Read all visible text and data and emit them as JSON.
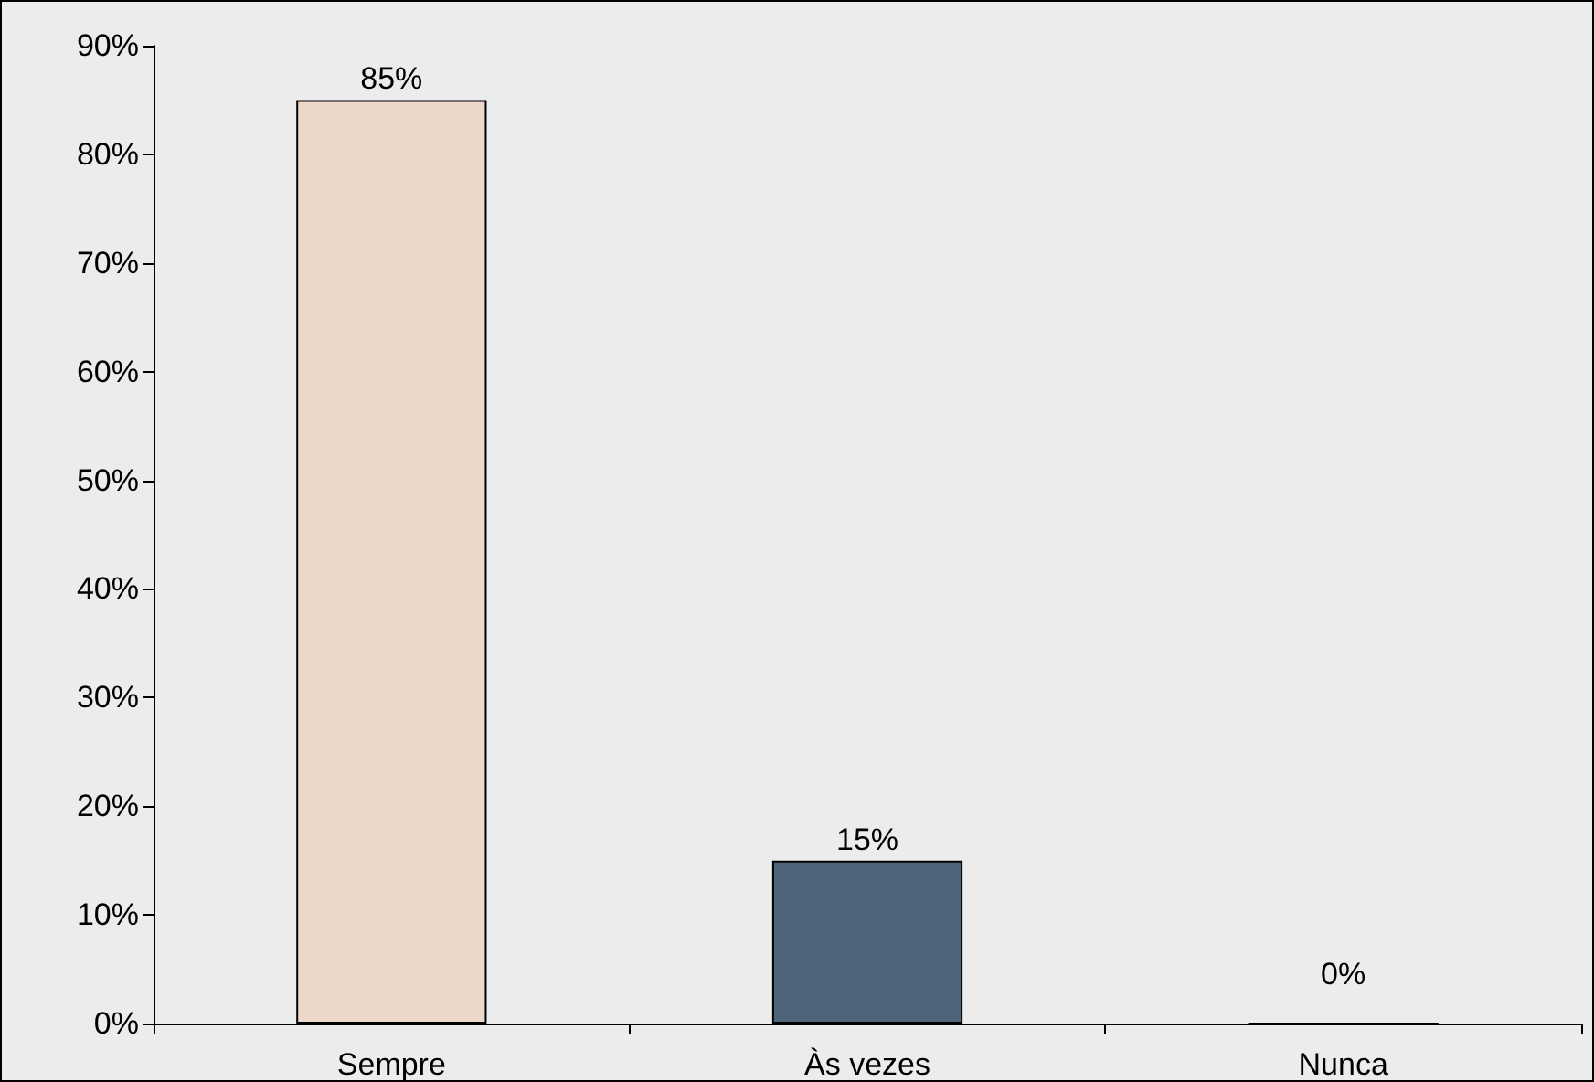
{
  "chart_data": {
    "type": "bar",
    "categories": [
      "Sempre",
      "Às vezes",
      "Nunca"
    ],
    "values": [
      85,
      15,
      0
    ],
    "colors": [
      "#ecd8ca",
      "#4f6478",
      "#000000"
    ],
    "value_labels": [
      "85%",
      "15%",
      "0%"
    ],
    "ylim": [
      0,
      90
    ],
    "yticks": [
      {
        "value": 0,
        "label": "0%"
      },
      {
        "value": 10,
        "label": "10%"
      },
      {
        "value": 20,
        "label": "20%"
      },
      {
        "value": 30,
        "label": "30%"
      },
      {
        "value": 40,
        "label": "40%"
      },
      {
        "value": 50,
        "label": "50%"
      },
      {
        "value": 60,
        "label": "60%"
      },
      {
        "value": 70,
        "label": "70%"
      },
      {
        "value": 80,
        "label": "80%"
      },
      {
        "value": 90,
        "label": "90%"
      }
    ],
    "grid": false
  }
}
